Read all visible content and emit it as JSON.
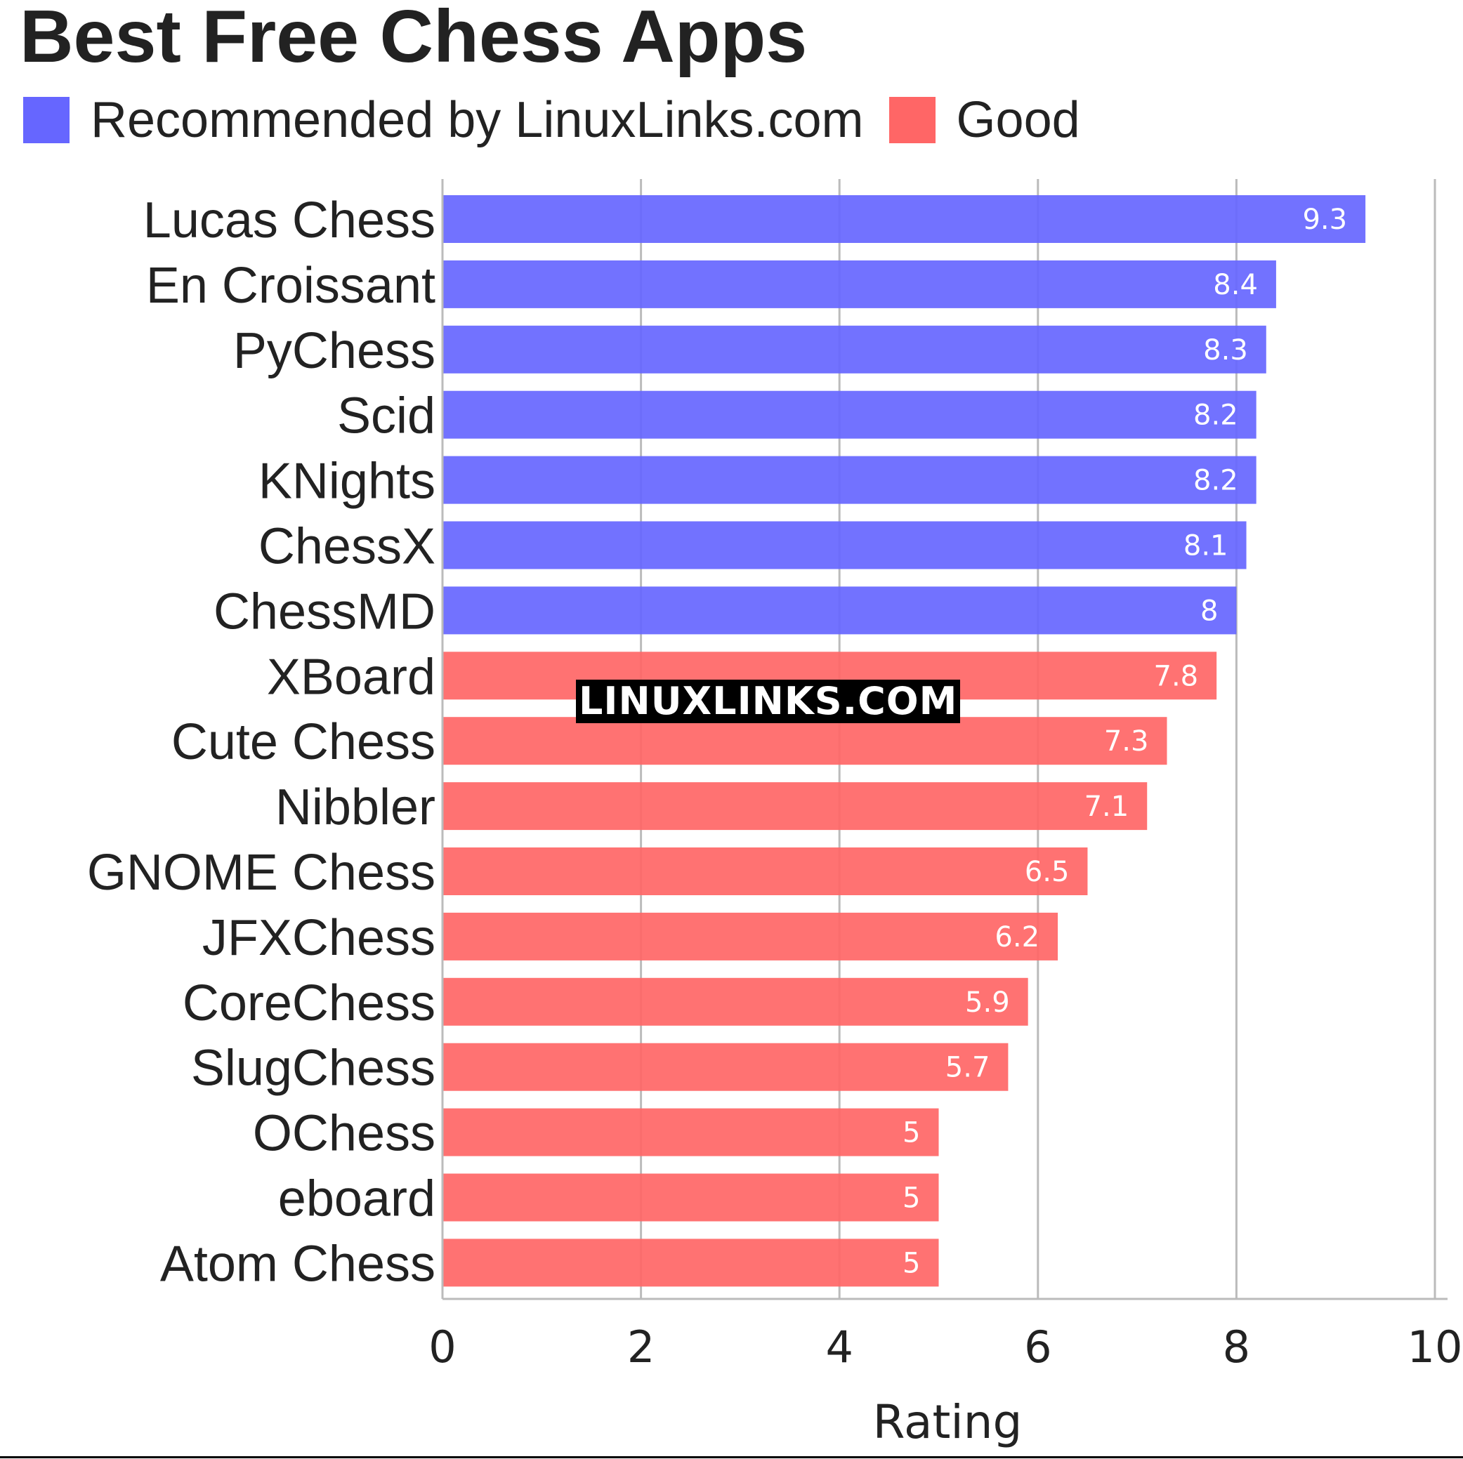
{
  "chart_data": {
    "type": "bar",
    "orientation": "horizontal",
    "title": "Best Free Chess Apps",
    "xlabel": "Rating",
    "ylabel": "",
    "xlim": [
      0,
      10
    ],
    "x_ticks": [
      "0",
      "2",
      "4",
      "6",
      "8",
      "10"
    ],
    "grid": "vertical",
    "legend": {
      "placement": "top-left",
      "entries": [
        {
          "name": "Recommended by LinuxLinks.com",
          "color": "#6666ff"
        },
        {
          "name": "Good",
          "color": "#ff6666"
        }
      ]
    },
    "categories": [
      "Lucas Chess",
      "En Croissant",
      "PyChess",
      "Scid",
      "KNights",
      "ChessX",
      "ChessMD",
      "XBoard",
      "Cute Chess",
      "Nibbler",
      "GNOME Chess",
      "JFXChess",
      "CoreChess",
      "SlugChess",
      "OChess",
      "eboard",
      "Atom Chess"
    ],
    "values": [
      9.3,
      8.4,
      8.3,
      8.2,
      8.2,
      8.1,
      8,
      7.8,
      7.3,
      7.1,
      6.5,
      6.2,
      5.9,
      5.7,
      5,
      5,
      5
    ],
    "value_labels": [
      "9.3",
      "8.4",
      "8.3",
      "8.2",
      "8.2",
      "8.1",
      "8",
      "7.8",
      "7.3",
      "7.1",
      "6.5",
      "6.2",
      "5.9",
      "5.7",
      "5",
      "5",
      "5"
    ],
    "groups": [
      "Recommended by LinuxLinks.com",
      "Recommended by LinuxLinks.com",
      "Recommended by LinuxLinks.com",
      "Recommended by LinuxLinks.com",
      "Recommended by LinuxLinks.com",
      "Recommended by LinuxLinks.com",
      "Recommended by LinuxLinks.com",
      "Good",
      "Good",
      "Good",
      "Good",
      "Good",
      "Good",
      "Good",
      "Good",
      "Good",
      "Good"
    ]
  },
  "watermark": "LINUXLINKS.COM",
  "colors": {
    "recommended": "#6666ff",
    "good": "#ff6666",
    "grid": "#bbbbbb",
    "text": "#222222"
  }
}
